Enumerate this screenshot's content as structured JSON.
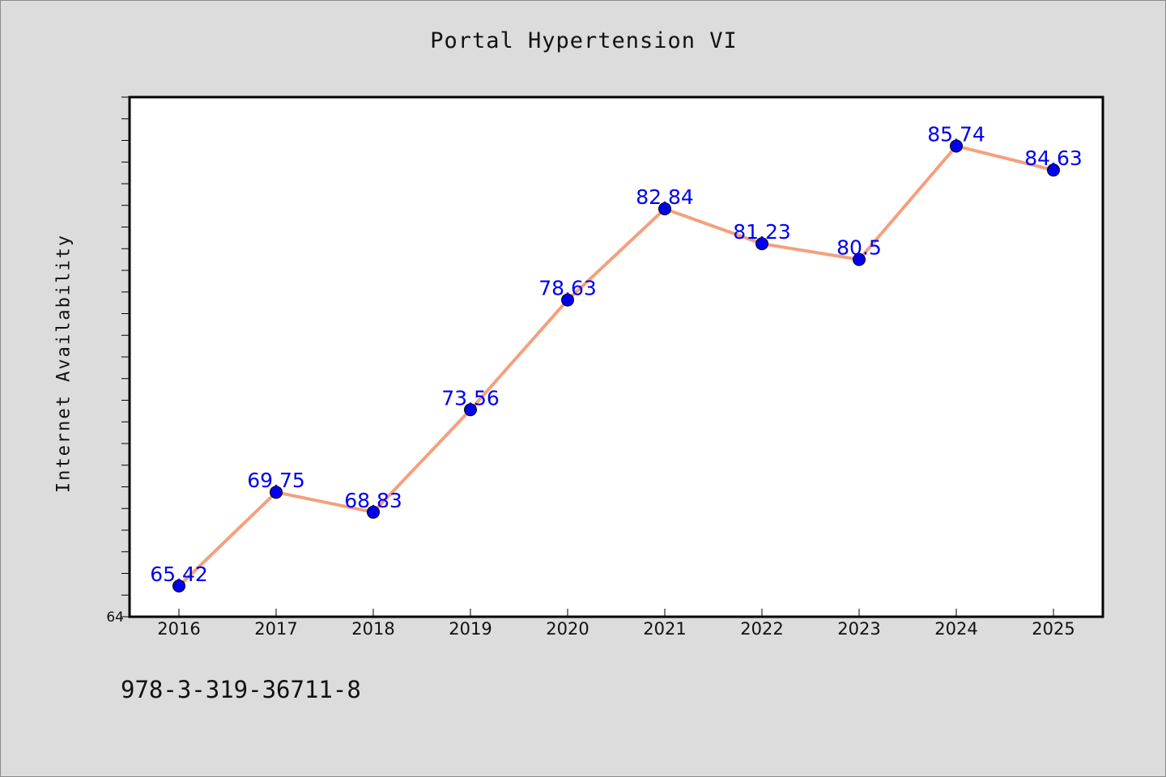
{
  "chart_data": {
    "type": "line",
    "title": "Portal Hypertension VI",
    "xlabel": "",
    "ylabel": "Internet Availability",
    "categories": [
      "2016",
      "2017",
      "2018",
      "2019",
      "2020",
      "2021",
      "2022",
      "2023",
      "2024",
      "2025"
    ],
    "series": [
      {
        "values": [
          65.42,
          69.75,
          68.83,
          73.56,
          78.63,
          82.84,
          81.23,
          80.5,
          85.74,
          84.63
        ],
        "data_labels": [
          "65.42",
          "69.75",
          "68.83",
          "73.56",
          "78.63",
          "82.84",
          "81.23",
          "80.5",
          "85.74",
          "84.63"
        ]
      }
    ],
    "ylim": [
      64,
      88
    ],
    "y_tick_labels": [
      "64"
    ],
    "grid": false,
    "legend": "none",
    "colors": {
      "line": "#f4a07e",
      "marker": "#0000ee",
      "data_label": "#0000ee",
      "background": "#dcdcdc",
      "plot_background": "#ffffff"
    }
  },
  "footer": {
    "note": "978-3-319-36711-8"
  }
}
